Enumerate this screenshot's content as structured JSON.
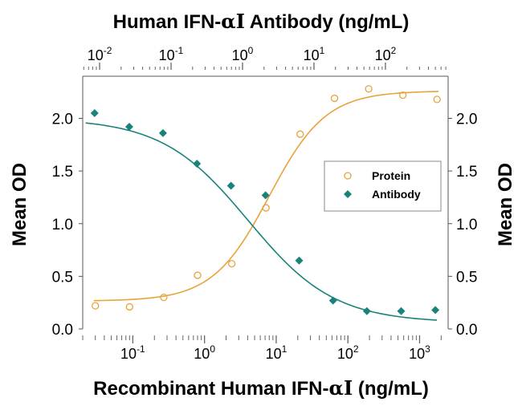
{
  "chart_data": {
    "type": "scatter",
    "title": {
      "prefix": "Human IFN-",
      "greek": "αI",
      "suffix": " Antibody (ng/mL)"
    },
    "xlabel": {
      "prefix": "Recombinant Human IFN-",
      "greek": "αI",
      "suffix": " (ng/mL)"
    },
    "ylabel_left": "Mean OD",
    "ylabel_right": "Mean OD",
    "x_scale": "log",
    "x_range": [
      0.02,
      2500
    ],
    "x_ticks": [
      {
        "value": 0.1,
        "base": "10",
        "exp": "-1"
      },
      {
        "value": 1,
        "base": "10",
        "exp": "0"
      },
      {
        "value": 10,
        "base": "10",
        "exp": "1"
      },
      {
        "value": 100,
        "base": "10",
        "exp": "2"
      },
      {
        "value": 1000,
        "base": "10",
        "exp": "3"
      }
    ],
    "top_axis": {
      "scale": "log",
      "range": [
        0.0058,
        754
      ],
      "ticks": [
        {
          "value": 0.01,
          "base": "10",
          "exp": "-2"
        },
        {
          "value": 0.1,
          "base": "10",
          "exp": "-1"
        },
        {
          "value": 1,
          "base": "10",
          "exp": "0"
        },
        {
          "value": 10,
          "base": "10",
          "exp": "1"
        },
        {
          "value": 100,
          "base": "10",
          "exp": "2"
        }
      ]
    },
    "ylim": [
      0.0,
      2.4
    ],
    "y_ticks": [
      "0.0",
      "0.5",
      "1.0",
      "1.5",
      "2.0"
    ],
    "y_tick_values": [
      0.0,
      0.5,
      1.0,
      1.5,
      2.0
    ],
    "legend_position": "right-middle",
    "grid": false,
    "series": [
      {
        "name": "Protein",
        "axis": "bottom",
        "marker": "open-circle",
        "color": "#E8A33A",
        "x": [
          0.03,
          0.09,
          0.27,
          0.8,
          2.4,
          7.2,
          21.6,
          65,
          195,
          585,
          1750
        ],
        "y": [
          0.22,
          0.21,
          0.3,
          0.51,
          0.62,
          1.15,
          1.85,
          2.19,
          2.28,
          2.22,
          2.18
        ],
        "fit": {
          "bottom": 0.265,
          "top": 2.26,
          "ec50": 8.0,
          "hill": 1.1
        }
      },
      {
        "name": "Antibody",
        "axis": "top",
        "marker": "filled-diamond",
        "color": "#19837B",
        "x": [
          0.0085,
          0.026,
          0.077,
          0.23,
          0.69,
          2.1,
          6.2,
          18.5,
          55,
          166,
          500
        ],
        "y": [
          2.05,
          1.92,
          1.86,
          1.57,
          1.36,
          1.27,
          0.65,
          0.27,
          0.17,
          0.17,
          0.18
        ],
        "fit": {
          "bottom": 0.06,
          "top": 2.0,
          "ec50": 1.2,
          "hill": 0.72
        }
      }
    ]
  }
}
